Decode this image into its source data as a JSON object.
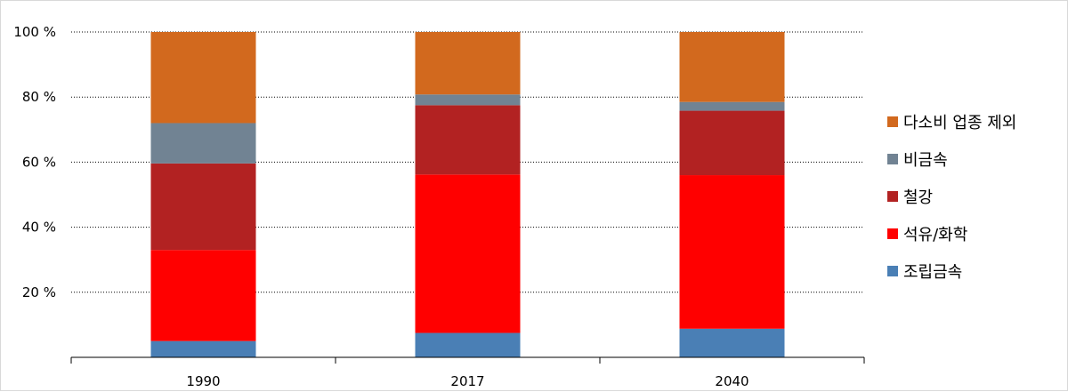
{
  "chart_data": {
    "type": "bar",
    "stacked": true,
    "percent": true,
    "categories": [
      "1990",
      "2017",
      "2040"
    ],
    "ylim": [
      0,
      100
    ],
    "yticks": [
      "20 %",
      "40 %",
      "60 %",
      "80 %",
      "100 %"
    ],
    "ytick_values": [
      20,
      40,
      60,
      80,
      100
    ],
    "grid": true,
    "legend_position": "right",
    "series": [
      {
        "name": "조립금속",
        "color": "#4a7fb5",
        "values": [
          5,
          7.5,
          8.8
        ]
      },
      {
        "name": "석유/화학",
        "color": "#ff0000",
        "values": [
          28,
          48.7,
          47.2
        ]
      },
      {
        "name": "철강",
        "color": "#b22222",
        "values": [
          26.6,
          21.3,
          19.8
        ]
      },
      {
        "name": "비금속",
        "color": "#718393",
        "values": [
          12.4,
          3.3,
          2.7
        ]
      },
      {
        "name": "다소비 업종 제외",
        "color": "#d2691e",
        "values": [
          28,
          19.2,
          21.5
        ]
      }
    ]
  }
}
